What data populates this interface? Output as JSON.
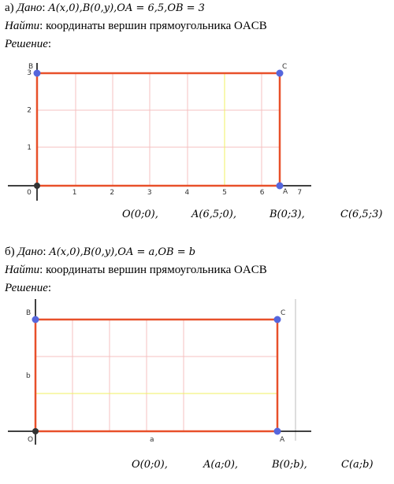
{
  "part_a": {
    "label": "а)",
    "given_label": "Дано",
    "given": "A(x,0),B(0,y),OA = 6,5,OB = 3",
    "find_label": "Найти",
    "find": "координаты вершин прямоугольника OACB",
    "solution_label": "Решение",
    "figure": {
      "x_ticks": [
        "0",
        "1",
        "2",
        "3",
        "4",
        "5",
        "6",
        "7"
      ],
      "y_ticks": [
        "1",
        "2",
        "3"
      ],
      "points": [
        "B",
        "C",
        "A"
      ]
    },
    "answer": [
      "O(0;0),",
      "A(6,5;0),",
      "B(0;3),",
      "C(6,5;3)"
    ]
  },
  "part_b": {
    "label": "б)",
    "given_label": "Дано",
    "given": "A(x,0),B(0,y),OA = a,OB = b",
    "find_label": "Найти",
    "find": "координаты вершин прямоугольника OACB",
    "solution_label": "Решение",
    "figure": {
      "points": [
        "B",
        "C",
        "O",
        "A"
      ],
      "y_label": "b",
      "x_label": "a"
    },
    "answer": [
      "O(0;0),",
      "A(a;0),",
      "B(0;b),",
      "C(a;b)"
    ]
  }
}
